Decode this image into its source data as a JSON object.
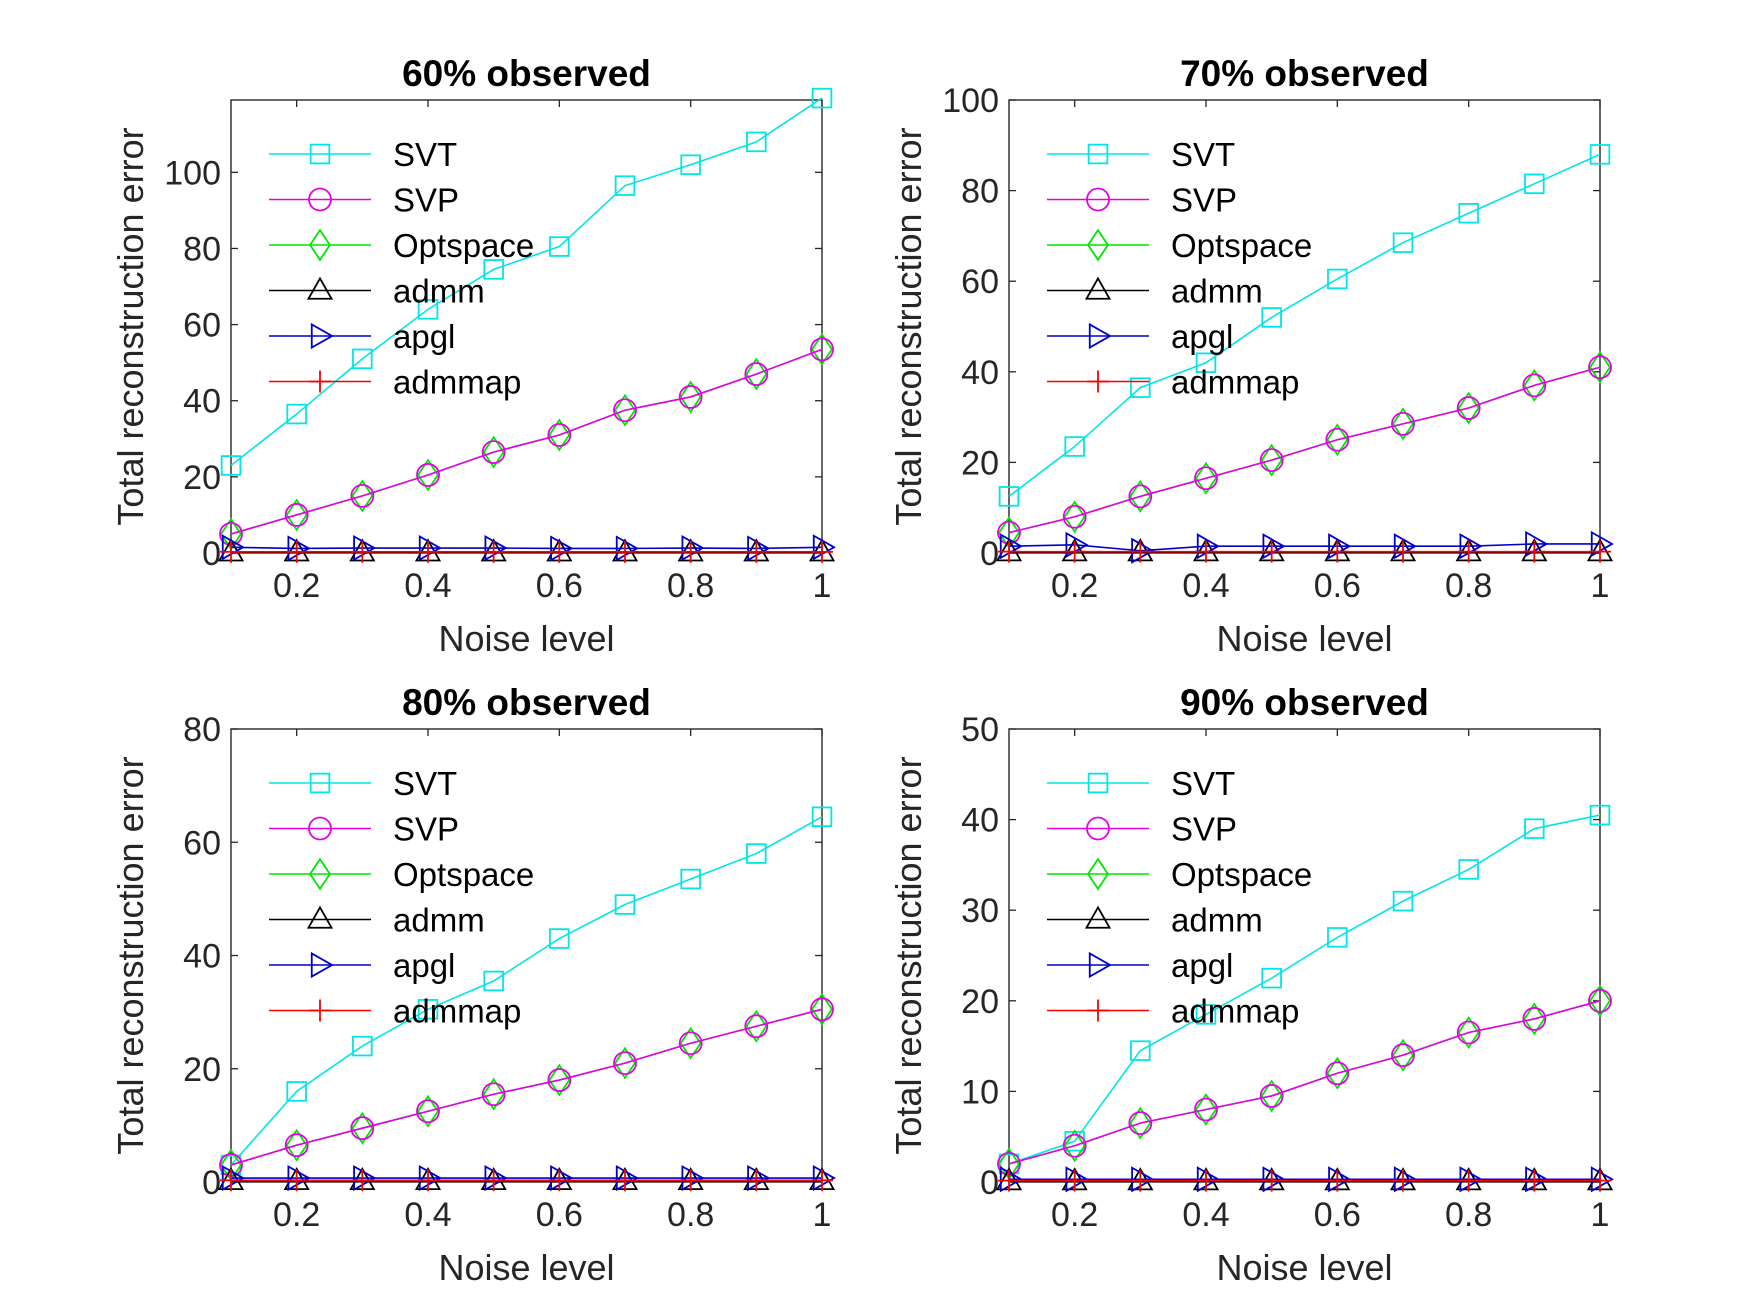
{
  "chart_data": [
    {
      "type": "line",
      "title": "60% observed",
      "xlabel": "Noise level",
      "ylabel": "Total reconstruction error",
      "xlim": [
        0.1,
        1
      ],
      "ylim": [
        0,
        119
      ],
      "x_ticks": [
        0.2,
        0.4,
        0.6,
        0.8,
        1
      ],
      "x_tick_labels": [
        "0.2",
        "0.4",
        "0.6",
        "0.8",
        "1"
      ],
      "y_ticks": [
        0,
        20,
        40,
        60,
        80,
        100
      ],
      "y_tick_labels": [
        "0",
        "20",
        "40",
        "60",
        "80",
        "100"
      ],
      "legend_position": "top-left",
      "x": [
        0.1,
        0.2,
        0.3,
        0.4,
        0.5,
        0.6,
        0.7,
        0.8,
        0.9,
        1.0
      ],
      "series": [
        {
          "name": "SVT",
          "color": "#00e6e6",
          "marker": "square",
          "values": [
            23,
            36.5,
            51,
            64,
            74.5,
            80.5,
            96.5,
            102,
            108,
            119.5
          ]
        },
        {
          "name": "SVP",
          "color": "#e600e6",
          "marker": "circle",
          "values": [
            5,
            10,
            15,
            20.5,
            26.5,
            31,
            37.5,
            41,
            47,
            53.5
          ]
        },
        {
          "name": "Optspace",
          "color": "#00e600",
          "marker": "diamond",
          "values": [
            5,
            10,
            15,
            20.5,
            26.5,
            31,
            37.5,
            41,
            47,
            53.5
          ]
        },
        {
          "name": "admm",
          "color": "#000000",
          "marker": "triangle-up",
          "values": [
            0.2,
            0.2,
            0.2,
            0.2,
            0.2,
            0.2,
            0.2,
            0.2,
            0.2,
            0.2
          ]
        },
        {
          "name": "apgl",
          "color": "#0000cc",
          "marker": "triangle-right",
          "values": [
            1.5,
            1.2,
            1.3,
            1.3,
            1.3,
            1.2,
            1.2,
            1.3,
            1.2,
            1.5
          ]
        },
        {
          "name": "admmap",
          "color": "#ff0000",
          "marker": "plus",
          "values": [
            0.3,
            0.3,
            0.3,
            0.3,
            0.3,
            0.3,
            0.3,
            0.3,
            0.3,
            0.3
          ]
        }
      ]
    },
    {
      "type": "line",
      "title": "70% observed",
      "xlabel": "Noise level",
      "ylabel": "Total reconstruction error",
      "xlim": [
        0.1,
        1
      ],
      "ylim": [
        0,
        100
      ],
      "x_ticks": [
        0.2,
        0.4,
        0.6,
        0.8,
        1
      ],
      "x_tick_labels": [
        "0.2",
        "0.4",
        "0.6",
        "0.8",
        "1"
      ],
      "y_ticks": [
        0,
        20,
        40,
        60,
        80,
        100
      ],
      "y_tick_labels": [
        "0",
        "20",
        "40",
        "60",
        "80",
        "100"
      ],
      "legend_position": "top-left",
      "x": [
        0.1,
        0.2,
        0.3,
        0.4,
        0.5,
        0.6,
        0.7,
        0.8,
        0.9,
        1.0
      ],
      "series": [
        {
          "name": "SVT",
          "color": "#00e6e6",
          "marker": "square",
          "values": [
            12.5,
            23.5,
            36.5,
            42,
            52,
            60.5,
            68.5,
            75,
            81.5,
            88
          ]
        },
        {
          "name": "SVP",
          "color": "#e600e6",
          "marker": "circle",
          "values": [
            4.5,
            8,
            12.5,
            16.5,
            20.5,
            25,
            28.5,
            32,
            37,
            41
          ]
        },
        {
          "name": "Optspace",
          "color": "#00e600",
          "marker": "diamond",
          "values": [
            4.5,
            8,
            12.5,
            16.5,
            20.5,
            25,
            28.5,
            32,
            37,
            41
          ]
        },
        {
          "name": "admm",
          "color": "#000000",
          "marker": "triangle-up",
          "values": [
            0.2,
            0.2,
            0.2,
            0.2,
            0.2,
            0.2,
            0.2,
            0.2,
            0.2,
            0.2
          ]
        },
        {
          "name": "apgl",
          "color": "#0000cc",
          "marker": "triangle-right",
          "values": [
            1.5,
            1.8,
            0.5,
            1.5,
            1.5,
            1.5,
            1.5,
            1.5,
            2,
            2
          ]
        },
        {
          "name": "admmap",
          "color": "#ff0000",
          "marker": "plus",
          "values": [
            0.3,
            0.3,
            0.3,
            0.3,
            0.3,
            0.3,
            0.3,
            0.3,
            0.3,
            0.3
          ]
        }
      ]
    },
    {
      "type": "line",
      "title": "80% observed",
      "xlabel": "Noise level",
      "ylabel": "Total reconstruction error",
      "xlim": [
        0.1,
        1
      ],
      "ylim": [
        0,
        80
      ],
      "x_ticks": [
        0.2,
        0.4,
        0.6,
        0.8,
        1
      ],
      "x_tick_labels": [
        "0.2",
        "0.4",
        "0.6",
        "0.8",
        "1"
      ],
      "y_ticks": [
        0,
        20,
        40,
        60,
        80
      ],
      "y_tick_labels": [
        "0",
        "20",
        "40",
        "60",
        "80"
      ],
      "legend_position": "top-left",
      "x": [
        0.1,
        0.2,
        0.3,
        0.4,
        0.5,
        0.6,
        0.7,
        0.8,
        0.9,
        1.0
      ],
      "series": [
        {
          "name": "SVT",
          "color": "#00e6e6",
          "marker": "square",
          "values": [
            3,
            16,
            24,
            30.5,
            35.5,
            43,
            49,
            53.5,
            58,
            64.5
          ]
        },
        {
          "name": "SVP",
          "color": "#e600e6",
          "marker": "circle",
          "values": [
            3,
            6.5,
            9.5,
            12.5,
            15.5,
            18,
            21,
            24.5,
            27.5,
            30.5
          ]
        },
        {
          "name": "Optspace",
          "color": "#00e600",
          "marker": "diamond",
          "values": [
            3,
            6.5,
            9.5,
            12.5,
            15.5,
            18,
            21,
            24.5,
            27.5,
            30.5
          ]
        },
        {
          "name": "admm",
          "color": "#000000",
          "marker": "triangle-up",
          "values": [
            0.2,
            0.2,
            0.2,
            0.2,
            0.2,
            0.2,
            0.2,
            0.2,
            0.2,
            0.2
          ]
        },
        {
          "name": "apgl",
          "color": "#0000cc",
          "marker": "triangle-right",
          "values": [
            0.7,
            0.7,
            0.7,
            0.7,
            0.7,
            0.7,
            0.7,
            0.7,
            0.7,
            0.7
          ]
        },
        {
          "name": "admmap",
          "color": "#ff0000",
          "marker": "plus",
          "values": [
            0.3,
            0.3,
            0.3,
            0.3,
            0.3,
            0.3,
            0.3,
            0.3,
            0.3,
            0.3
          ]
        }
      ]
    },
    {
      "type": "line",
      "title": "90% observed",
      "xlabel": "Noise level",
      "ylabel": "Total reconstruction error",
      "xlim": [
        0.1,
        1
      ],
      "ylim": [
        0,
        50
      ],
      "x_ticks": [
        0.2,
        0.4,
        0.6,
        0.8,
        1
      ],
      "x_tick_labels": [
        "0.2",
        "0.4",
        "0.6",
        "0.8",
        "1"
      ],
      "y_ticks": [
        0,
        10,
        20,
        30,
        40,
        50
      ],
      "y_tick_labels": [
        "0",
        "10",
        "20",
        "30",
        "40",
        "50"
      ],
      "legend_position": "top-left",
      "x": [
        0.1,
        0.2,
        0.3,
        0.4,
        0.5,
        0.6,
        0.7,
        0.8,
        0.9,
        1.0
      ],
      "series": [
        {
          "name": "SVT",
          "color": "#00e6e6",
          "marker": "square",
          "values": [
            2,
            4.5,
            14.5,
            18.5,
            22.5,
            27,
            31,
            34.5,
            39,
            40.5
          ]
        },
        {
          "name": "SVP",
          "color": "#e600e6",
          "marker": "circle",
          "values": [
            2,
            4,
            6.5,
            8,
            9.5,
            12,
            14,
            16.5,
            18,
            20
          ]
        },
        {
          "name": "Optspace",
          "color": "#00e600",
          "marker": "diamond",
          "values": [
            2,
            4,
            6.5,
            8,
            9.5,
            12,
            14,
            16.5,
            18,
            20
          ]
        },
        {
          "name": "admm",
          "color": "#000000",
          "marker": "triangle-up",
          "values": [
            0.1,
            0.1,
            0.1,
            0.1,
            0.1,
            0.1,
            0.1,
            0.1,
            0.1,
            0.1
          ]
        },
        {
          "name": "apgl",
          "color": "#0000cc",
          "marker": "triangle-right",
          "values": [
            0.3,
            0.3,
            0.3,
            0.3,
            0.3,
            0.3,
            0.3,
            0.3,
            0.3,
            0.3
          ]
        },
        {
          "name": "admmap",
          "color": "#ff0000",
          "marker": "plus",
          "values": [
            0.15,
            0.15,
            0.15,
            0.15,
            0.15,
            0.15,
            0.15,
            0.15,
            0.15,
            0.15
          ]
        }
      ]
    }
  ]
}
